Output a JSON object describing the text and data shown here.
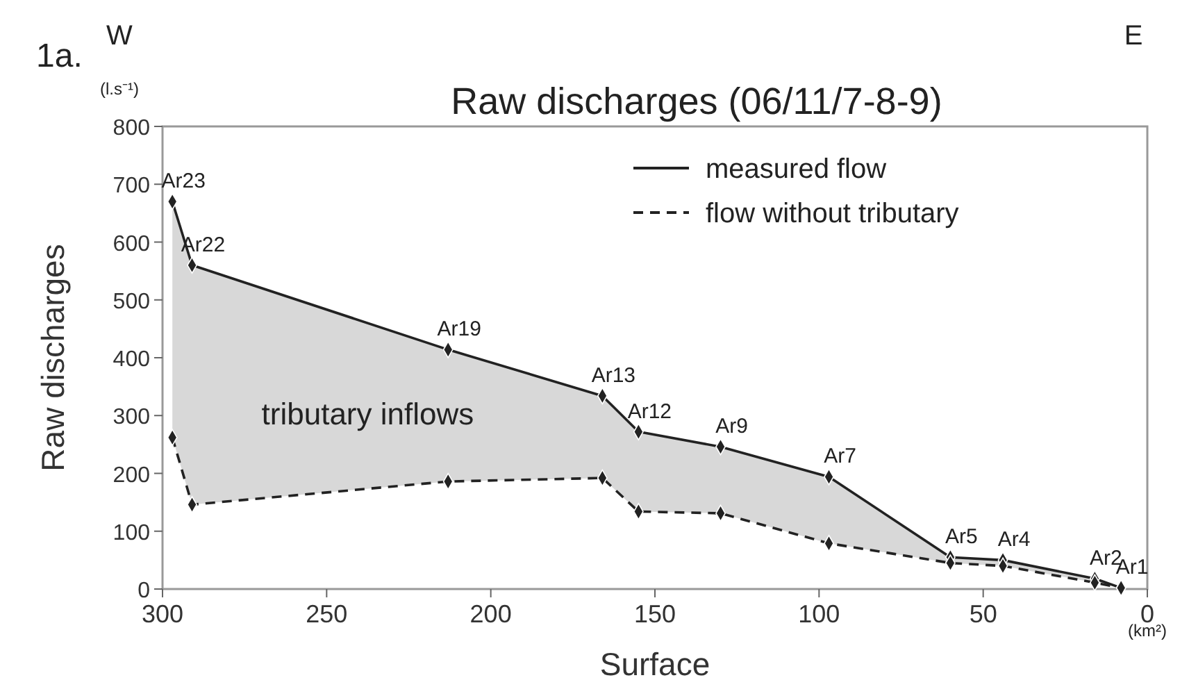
{
  "chart_data": {
    "type": "line",
    "title": "Raw discharges (06/11/7-8-9)",
    "xlabel": "Surface",
    "ylabel": "Raw discharges",
    "x": [
      297,
      291,
      213,
      166,
      155,
      130,
      97,
      60,
      44,
      16,
      8
    ],
    "series": [
      {
        "name": "measured flow",
        "color": "#222222",
        "line_style": "solid",
        "values": [
          670,
          560,
          414,
          334,
          272,
          246,
          194,
          55,
          50,
          18,
          2
        ],
        "lower": [
          262,
          146,
          186,
          192,
          134,
          131,
          79,
          45,
          40,
          11,
          2
        ],
        "upper": [
          670,
          560,
          414,
          334,
          272,
          246,
          194,
          55,
          50,
          18,
          2
        ]
      },
      {
        "name": "flow without tributary",
        "color": "#222222",
        "line_style": "dashed",
        "values": [
          262,
          146,
          186,
          192,
          134,
          131,
          79,
          45,
          40,
          11,
          2
        ]
      }
    ],
    "xlim": [
      300,
      0
    ],
    "xticks": [
      300,
      250,
      200,
      150,
      100,
      50,
      0
    ],
    "ylim": [
      0,
      800
    ],
    "yticks": [
      0,
      100,
      200,
      300,
      400,
      500,
      600,
      700,
      800
    ],
    "grid": false,
    "legend": "top right",
    "marker": "diamond",
    "annotations": [
      "1a.",
      "W",
      "E",
      "(l.s⁻¹)",
      "(km²)",
      "tributary inflows",
      {
        "text": "Ar23",
        "x": 297,
        "y": 670
      },
      {
        "text": "Ar22",
        "x": 291,
        "y": 560
      },
      {
        "text": "Ar19",
        "x": 213,
        "y": 414
      },
      {
        "text": "Ar13",
        "x": 166,
        "y": 334
      },
      {
        "text": "Ar12",
        "x": 155,
        "y": 272
      },
      {
        "text": "Ar9",
        "x": 130,
        "y": 246
      },
      {
        "text": "Ar7",
        "x": 97,
        "y": 194
      },
      {
        "text": "Ar5",
        "x": 60,
        "y": 55
      },
      {
        "text": "Ar4",
        "x": 44,
        "y": 50
      },
      {
        "text": "Ar2",
        "x": 16,
        "y": 18
      },
      {
        "text": "Ar1",
        "x": 8,
        "y": 2
      }
    ]
  }
}
